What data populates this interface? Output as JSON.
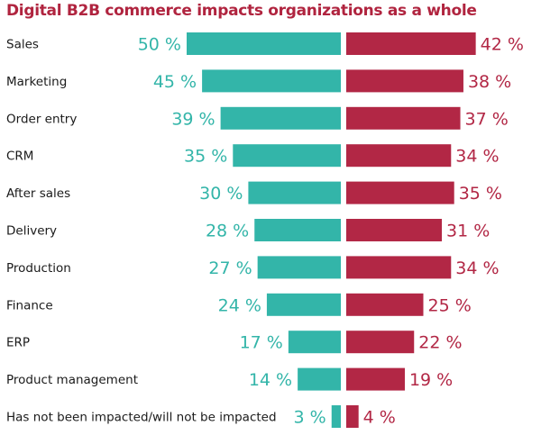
{
  "chart_data": {
    "type": "bar",
    "title": "Digital B2B commerce impacts organizations as a whole",
    "categories": [
      "Sales",
      "Marketing",
      "Order entry",
      "CRM",
      "After sales",
      "Delivery",
      "Production",
      "Finance",
      "ERP",
      "Product management",
      "Has not been impacted/will not be impacted"
    ],
    "series": [
      {
        "values": [
          50,
          45,
          39,
          35,
          30,
          28,
          27,
          24,
          17,
          14,
          3
        ],
        "color": "#33b5a9",
        "direction": "left"
      },
      {
        "values": [
          42,
          38,
          37,
          34,
          35,
          31,
          34,
          25,
          22,
          19,
          4
        ],
        "color": "#b22745",
        "direction": "right"
      }
    ],
    "value_suffix": " %",
    "xlim": [
      0,
      50
    ]
  }
}
